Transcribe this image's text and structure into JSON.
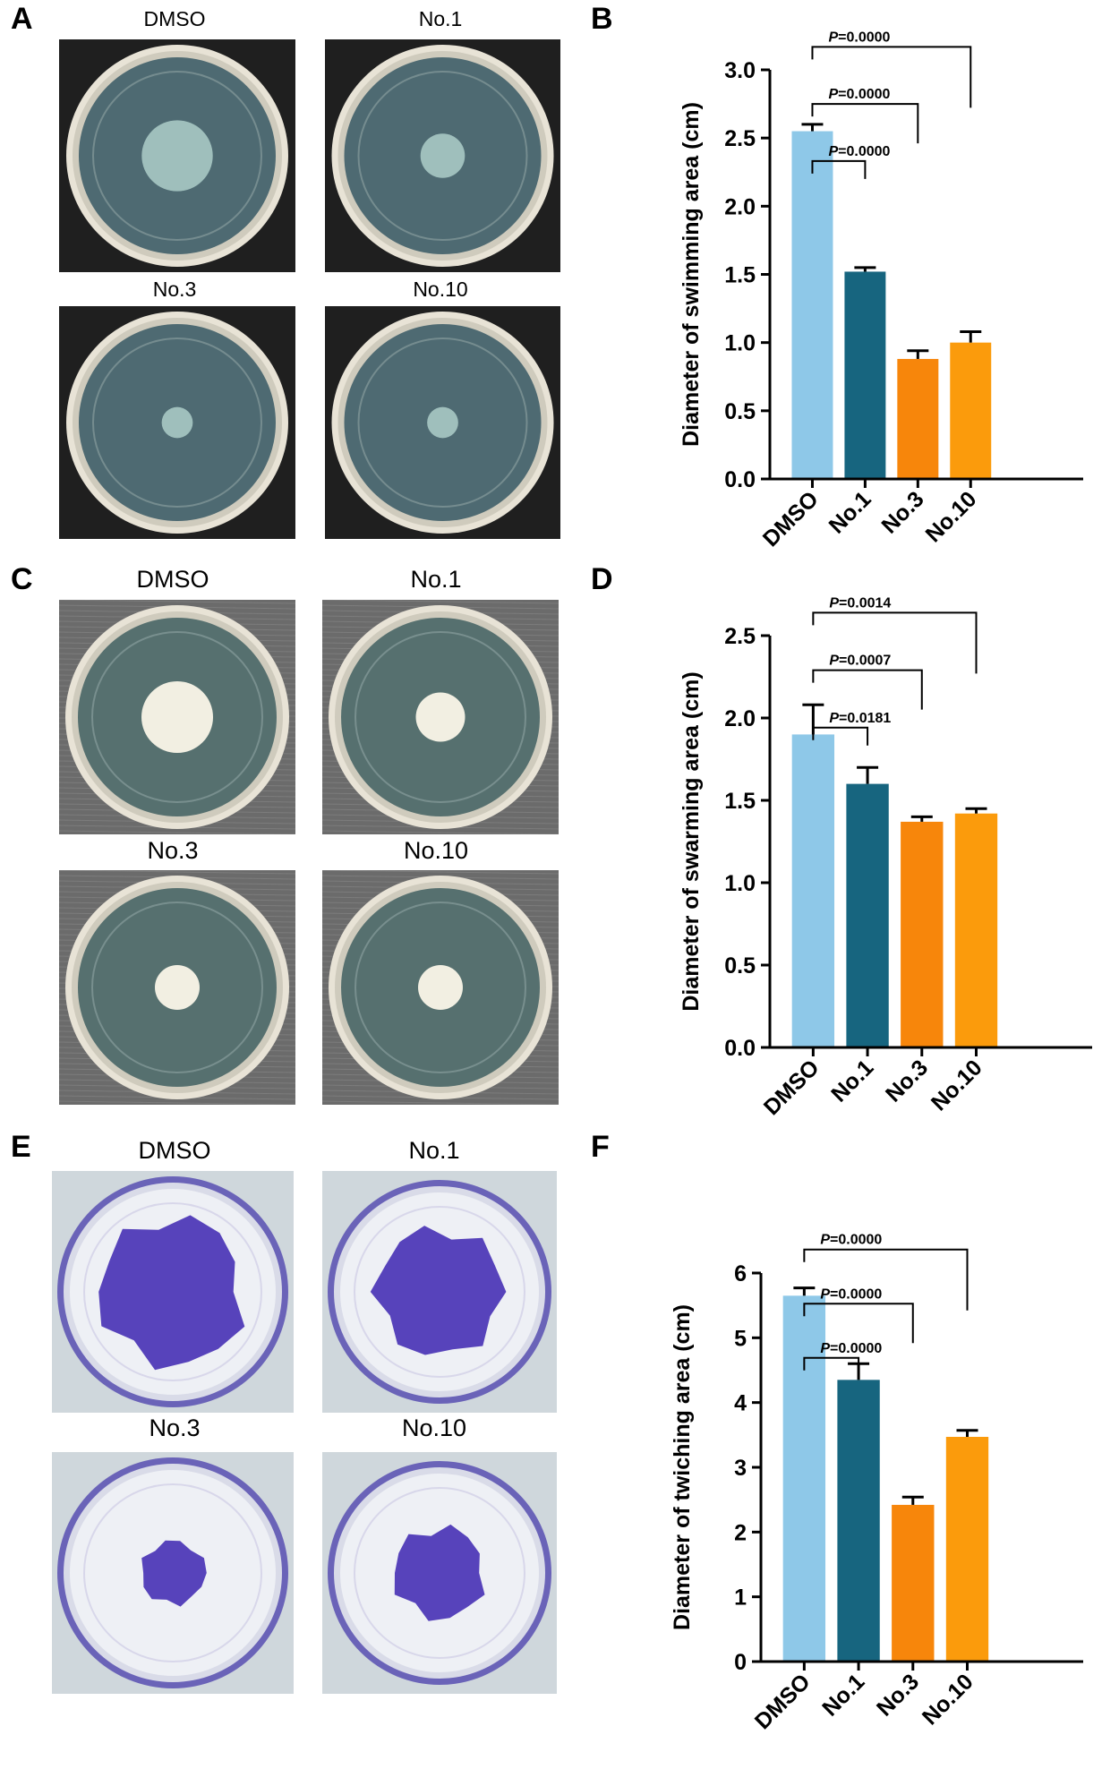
{
  "panels": [
    {
      "letter": "A",
      "photos": {
        "labels": [
          "DMSO",
          "No.1",
          "No.3",
          "No.10"
        ],
        "style": "swim",
        "background": "#1f1f1f",
        "agar_color": "#4e6a72",
        "colony_color": "#9fbfbc",
        "colony_size": [
          0.32,
          0.2,
          0.14,
          0.14
        ]
      }
    },
    {
      "letter": "B",
      "chart_data": {
        "type": "bar",
        "categories": [
          "DMSO",
          "No.1",
          "No.3",
          "No.10"
        ],
        "values": [
          2.55,
          1.52,
          0.88,
          1.0
        ],
        "errors": [
          0.05,
          0.03,
          0.06,
          0.08
        ],
        "colors": [
          "#8ec8e8",
          "#17657f",
          "#f7860b",
          "#fb9b0c"
        ],
        "ylabel": "Diameter of swimming area (cm)",
        "ylim": [
          0,
          3.0
        ],
        "yticks": [
          0.0,
          0.5,
          1.0,
          1.5,
          2.0,
          2.5,
          3.0
        ],
        "tick_decimals": 1,
        "comparisons": [
          {
            "label": "=0.0000",
            "to": 1
          },
          {
            "label": "=0.0000",
            "to": 2
          },
          {
            "label": "=0.0000",
            "to": 3
          }
        ]
      }
    },
    {
      "letter": "C",
      "photos": {
        "labels": [
          "DMSO",
          "No.1",
          "No.3",
          "No.10"
        ],
        "style": "swarm",
        "background": "#6b6b6b",
        "agar_color": "#56706f",
        "colony_color": "#f2efe2",
        "colony_size": [
          0.32,
          0.22,
          0.2,
          0.2
        ]
      }
    },
    {
      "letter": "D",
      "chart_data": {
        "type": "bar",
        "categories": [
          "DMSO",
          "No.1",
          "No.3",
          "No.10"
        ],
        "values": [
          1.9,
          1.6,
          1.37,
          1.42
        ],
        "errors": [
          0.18,
          0.1,
          0.03,
          0.03
        ],
        "colors": [
          "#8ec8e8",
          "#17657f",
          "#f7860b",
          "#fb9b0c"
        ],
        "ylabel": "Diameter of swarming area (cm)",
        "ylim": [
          0,
          2.5
        ],
        "yticks": [
          0.0,
          0.5,
          1.0,
          1.5,
          2.0,
          2.5
        ],
        "tick_decimals": 1,
        "comparisons": [
          {
            "label": "=0.0181",
            "to": 1
          },
          {
            "label": "=0.0007",
            "to": 2
          },
          {
            "label": "=0.0014",
            "to": 3
          }
        ]
      }
    },
    {
      "letter": "E",
      "photos": {
        "labels": [
          "DMSO",
          "No.1",
          "No.3",
          "No.10"
        ],
        "style": "twitch",
        "background": "#cfd7dc",
        "agar_color": "#eef0f5",
        "colony_color": "#3c24b0",
        "colony_size": [
          0.7,
          0.62,
          0.3,
          0.45
        ]
      }
    },
    {
      "letter": "F",
      "chart_data": {
        "type": "bar",
        "categories": [
          "DMSO",
          "No.1",
          "No.3",
          "No.10"
        ],
        "values": [
          5.65,
          4.35,
          2.42,
          3.47
        ],
        "errors": [
          0.12,
          0.25,
          0.12,
          0.1
        ],
        "colors": [
          "#8ec8e8",
          "#17657f",
          "#f7860b",
          "#fb9b0c"
        ],
        "ylabel": "Diameter of twiching area (cm)",
        "ylim": [
          0,
          6
        ],
        "yticks": [
          0,
          1,
          2,
          3,
          4,
          5,
          6
        ],
        "tick_decimals": 0,
        "comparisons": [
          {
            "label": "=0.0000",
            "to": 1
          },
          {
            "label": "=0.0000",
            "to": 2
          },
          {
            "label": "=0.0000",
            "to": 3
          }
        ]
      }
    }
  ],
  "p_letter": "P"
}
